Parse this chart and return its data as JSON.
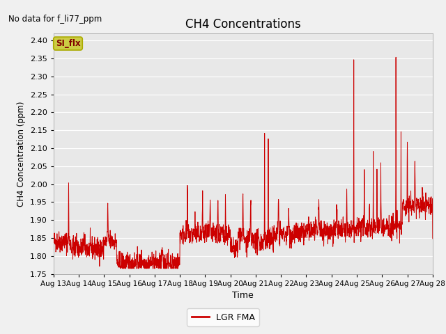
{
  "title": "CH4 Concentrations",
  "xlabel": "Time",
  "ylabel": "CH4 Concentration (ppm)",
  "no_data_text": "No data for f_li77_ppm",
  "legend_label": "LGR FMA",
  "legend_color": "#cc0000",
  "line_color": "#cc0000",
  "ylim": [
    1.75,
    2.42
  ],
  "yticks": [
    1.75,
    1.8,
    1.85,
    1.9,
    1.95,
    2.0,
    2.05,
    2.1,
    2.15,
    2.2,
    2.25,
    2.3,
    2.35,
    2.4
  ],
  "x_start_day": 13,
  "x_end_day": 28,
  "x_tick_days": [
    13,
    14,
    15,
    16,
    17,
    18,
    19,
    20,
    21,
    22,
    23,
    24,
    25,
    26,
    27,
    28
  ],
  "x_tick_labels": [
    "Aug 13",
    "Aug 14",
    "Aug 15",
    "Aug 16",
    "Aug 17",
    "Aug 18",
    "Aug 19",
    "Aug 20",
    "Aug 21",
    "Aug 22",
    "Aug 23",
    "Aug 24",
    "Aug 25",
    "Aug 26",
    "Aug 27",
    "Aug 28"
  ],
  "fig_bg_color": "#f0f0f0",
  "plot_bg_color": "#e8e8e8",
  "grid_color": "#ffffff",
  "si_flx_box_color": "#cccc44",
  "si_flx_text_color": "#800000"
}
